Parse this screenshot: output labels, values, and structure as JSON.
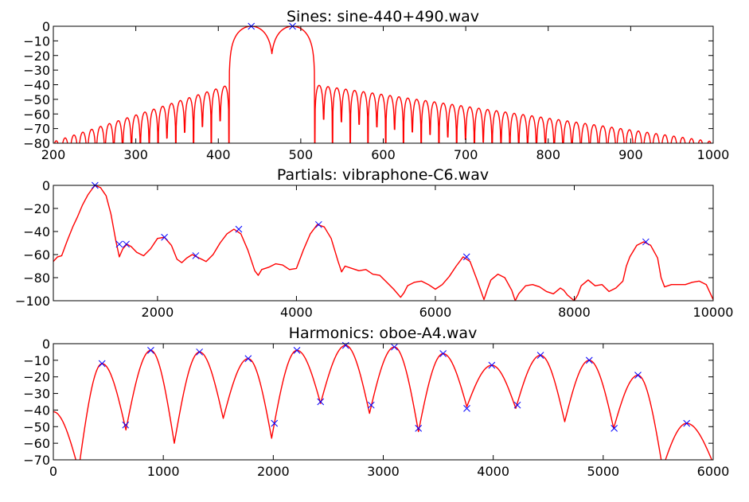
{
  "colors": {
    "line": "#ff0000",
    "marker": "#0000ff",
    "axes": "#000000",
    "background": "#ffffff"
  },
  "chart_data": [
    {
      "type": "line",
      "title": "Sines: sine-440+490.wav",
      "xlim": [
        200,
        1000
      ],
      "ylim": [
        -80,
        0
      ],
      "xticks": [
        200,
        300,
        400,
        500,
        600,
        700,
        800,
        900,
        1000
      ],
      "yticks": [
        0,
        -10,
        -20,
        -30,
        -40,
        -50,
        -60,
        -70,
        -80
      ],
      "xtick_labels": [
        "200",
        "300",
        "400",
        "500",
        "600",
        "700",
        "800",
        "900",
        "1000"
      ],
      "ytick_labels": [
        "0",
        "−10",
        "−20",
        "−30",
        "−40",
        "−50",
        "−60",
        "−70",
        "−80"
      ],
      "grid": false,
      "series": [
        {
          "style": "sidelobes",
          "x": [
            200,
            1000
          ],
          "main_lobes": [
            {
              "center": 440,
              "halfwidth": 27,
              "peak": 0
            },
            {
              "center": 490,
              "halfwidth": 27,
              "peak": 0
            }
          ],
          "sidelobe_spacing": 10.75,
          "sidelobe_level_near": -40,
          "sidelobe_level_far": -79
        }
      ],
      "peaks": {
        "x": [
          440,
          490
        ],
        "y": [
          0,
          0
        ]
      }
    },
    {
      "type": "line",
      "title": "Partials: vibraphone-C6.wav",
      "xlim": [
        500,
        10000
      ],
      "ylim": [
        -100,
        0
      ],
      "xticks": [
        2000,
        4000,
        6000,
        8000,
        10000
      ],
      "yticks": [
        0,
        -20,
        -40,
        -60,
        -80,
        -100
      ],
      "xtick_labels": [
        "2000",
        "4000",
        "6000",
        "8000",
        "10000"
      ],
      "ytick_labels": [
        "0",
        "−20",
        "−40",
        "−60",
        "−80",
        "−100"
      ],
      "grid": false,
      "series": [
        {
          "x": [
            500,
            560,
            620,
            700,
            780,
            850,
            920,
            1000,
            1060,
            1100,
            1180,
            1260,
            1330,
            1400,
            1450,
            1500,
            1560,
            1620,
            1700,
            1800,
            1900,
            2000,
            2100,
            2200,
            2280,
            2350,
            2420,
            2500,
            2600,
            2700,
            2800,
            2900,
            3000,
            3100,
            3200,
            3300,
            3400,
            3450,
            3500,
            3600,
            3700,
            3800,
            3900,
            4000,
            4100,
            4200,
            4300,
            4400,
            4500,
            4600,
            4650,
            4700,
            4800,
            4900,
            5000,
            5100,
            5200,
            5300,
            5400,
            5500,
            5550,
            5600,
            5700,
            5800,
            5900,
            6000,
            6100,
            6200,
            6300,
            6400,
            6500,
            6600,
            6700,
            6750,
            6800,
            6900,
            7000,
            7100,
            7150,
            7200,
            7300,
            7400,
            7500,
            7600,
            7700,
            7800,
            7850,
            7900,
            8000,
            8050,
            8100,
            8200,
            8300,
            8400,
            8500,
            8600,
            8700,
            8750,
            8800,
            8900,
            9000,
            9100,
            9200,
            9250,
            9300,
            9400,
            9500,
            9600,
            9700,
            9800,
            9900,
            10000
          ],
          "y": [
            -66,
            -62,
            -61,
            -48,
            -36,
            -27,
            -17,
            -8,
            -3,
            0,
            -2,
            -9,
            -25,
            -48,
            -62,
            -55,
            -51,
            -53,
            -58,
            -61,
            -55,
            -46,
            -45,
            -52,
            -64,
            -67,
            -63,
            -60,
            -63,
            -66,
            -60,
            -50,
            -42,
            -38,
            -42,
            -56,
            -74,
            -78,
            -73,
            -71,
            -68,
            -69,
            -73,
            -72,
            -56,
            -42,
            -34,
            -36,
            -46,
            -66,
            -75,
            -70,
            -72,
            -74,
            -73,
            -77,
            -78,
            -84,
            -90,
            -97,
            -93,
            -87,
            -84,
            -83,
            -86,
            -90,
            -86,
            -79,
            -70,
            -62,
            -66,
            -82,
            -99,
            -90,
            -82,
            -77,
            -80,
            -91,
            -100,
            -94,
            -87,
            -86,
            -88,
            -92,
            -94,
            -89,
            -91,
            -95,
            -100,
            -95,
            -87,
            -82,
            -87,
            -86,
            -92,
            -89,
            -83,
            -70,
            -62,
            -52,
            -49,
            -52,
            -63,
            -80,
            -88,
            -86,
            -86,
            -86,
            -84,
            -83,
            -86,
            -99
          ]
        }
      ],
      "peaks": {
        "x": [
          1100,
          1450,
          1550,
          2100,
          2550,
          3170,
          4320,
          6450,
          9030
        ],
        "y": [
          0,
          -51,
          -51,
          -45,
          -61,
          -38,
          -34,
          -62,
          -49
        ]
      }
    },
    {
      "type": "line",
      "title": "Harmonics: oboe-A4.wav",
      "xlim": [
        0,
        6000
      ],
      "ylim": [
        -70,
        0
      ],
      "xticks": [
        0,
        1000,
        2000,
        3000,
        4000,
        5000,
        6000
      ],
      "yticks": [
        0,
        -10,
        -20,
        -30,
        -40,
        -50,
        -60,
        -70
      ],
      "xtick_labels": [
        "0",
        "1000",
        "2000",
        "3000",
        "4000",
        "5000",
        "6000"
      ],
      "ytick_labels": [
        "0",
        "−10",
        "−20",
        "−30",
        "−40",
        "−50",
        "−60",
        "−70"
      ],
      "grid": false,
      "series": [
        {
          "style": "harmonics",
          "fundamental": 443,
          "harmonic_peaks": [
            -12,
            -4,
            -5,
            -9,
            -4,
            -1,
            -2,
            -6,
            -13,
            -7,
            -10,
            -19,
            -48
          ],
          "valley_x": [
            660,
            1100,
            1545,
            1985,
            2430,
            2875,
            3320,
            3760,
            4205,
            4650,
            5095,
            5540
          ],
          "valley_y": [
            -52,
            -60,
            -45,
            -57,
            -36,
            -42,
            -53,
            -38,
            -39,
            -47,
            -51,
            -75
          ],
          "start_y": -41,
          "end_y": -72
        }
      ],
      "peaks": {
        "x": [
          443,
          657,
          886,
          1329,
          1772,
          2010,
          2215,
          2430,
          2658,
          2890,
          3101,
          3320,
          3544,
          3760,
          3987,
          4220,
          4430,
          4873,
          5100,
          5316,
          5759
        ],
        "y": [
          -12,
          -49,
          -4,
          -5,
          -9,
          -48,
          -4,
          -35,
          -1,
          -37,
          -2,
          -51,
          -6,
          -39,
          -13,
          -37,
          -7,
          -10,
          -51,
          -19,
          -48
        ]
      }
    }
  ]
}
